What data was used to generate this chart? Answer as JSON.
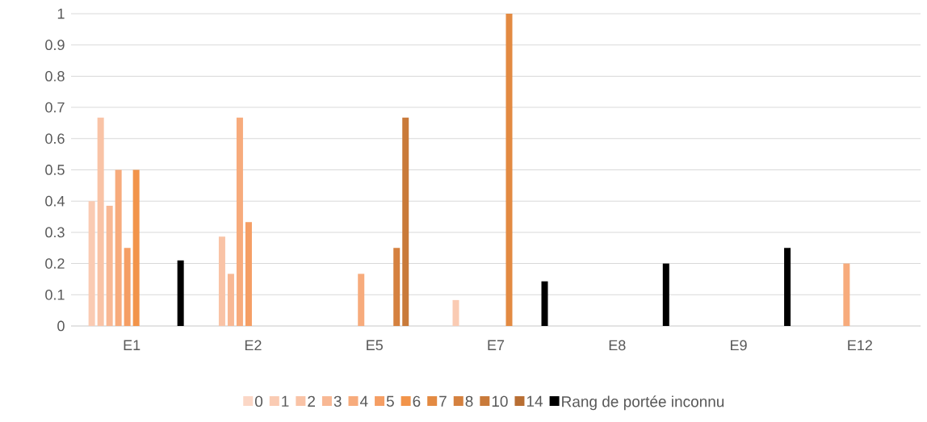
{
  "chart_data": {
    "type": "bar",
    "categories": [
      "E1",
      "E2",
      "E5",
      "E7",
      "E8",
      "E9",
      "E12"
    ],
    "series": [
      {
        "name": "0",
        "color": "#fbd7c6",
        "values": [
          null,
          null,
          null,
          null,
          null,
          null,
          null
        ]
      },
      {
        "name": "1",
        "color": "#facbb3",
        "values": [
          0.4,
          null,
          null,
          0.083,
          null,
          null,
          null
        ]
      },
      {
        "name": "2",
        "color": "#f9c3a6",
        "values": [
          0.667,
          0.286,
          null,
          null,
          null,
          null,
          null
        ]
      },
      {
        "name": "3",
        "color": "#f8b894",
        "values": [
          0.385,
          0.167,
          null,
          null,
          null,
          null,
          null
        ]
      },
      {
        "name": "4",
        "color": "#f7ab7c",
        "values": [
          0.5,
          0.667,
          0.167,
          null,
          null,
          null,
          0.2
        ]
      },
      {
        "name": "5",
        "color": "#f59e64",
        "values": [
          0.25,
          0.333,
          null,
          null,
          null,
          null,
          null
        ]
      },
      {
        "name": "6",
        "color": "#f2944a",
        "values": [
          0.5,
          null,
          null,
          null,
          null,
          null,
          null
        ]
      },
      {
        "name": "7",
        "color": "#e38a42",
        "values": [
          null,
          null,
          null,
          1,
          null,
          null,
          null
        ]
      },
      {
        "name": "8",
        "color": "#d5813f",
        "values": [
          null,
          null,
          0.25,
          null,
          null,
          null,
          null
        ]
      },
      {
        "name": "10",
        "color": "#c97a3a",
        "values": [
          null,
          null,
          0.667,
          null,
          null,
          null,
          null
        ]
      },
      {
        "name": "14",
        "color": "#b86e33",
        "values": [
          null,
          null,
          null,
          null,
          null,
          null,
          null
        ]
      },
      {
        "name": "Rang de portée inconnu",
        "color": "#000000",
        "values": [
          0.21,
          null,
          null,
          0.143,
          0.2,
          0.25,
          null
        ]
      }
    ],
    "ylim": [
      0,
      1
    ],
    "yticks": [
      0,
      0.1,
      0.2,
      0.3,
      0.4,
      0.5,
      0.6,
      0.7,
      0.8,
      0.9,
      1
    ],
    "grid": "y",
    "legend": "bottom"
  }
}
